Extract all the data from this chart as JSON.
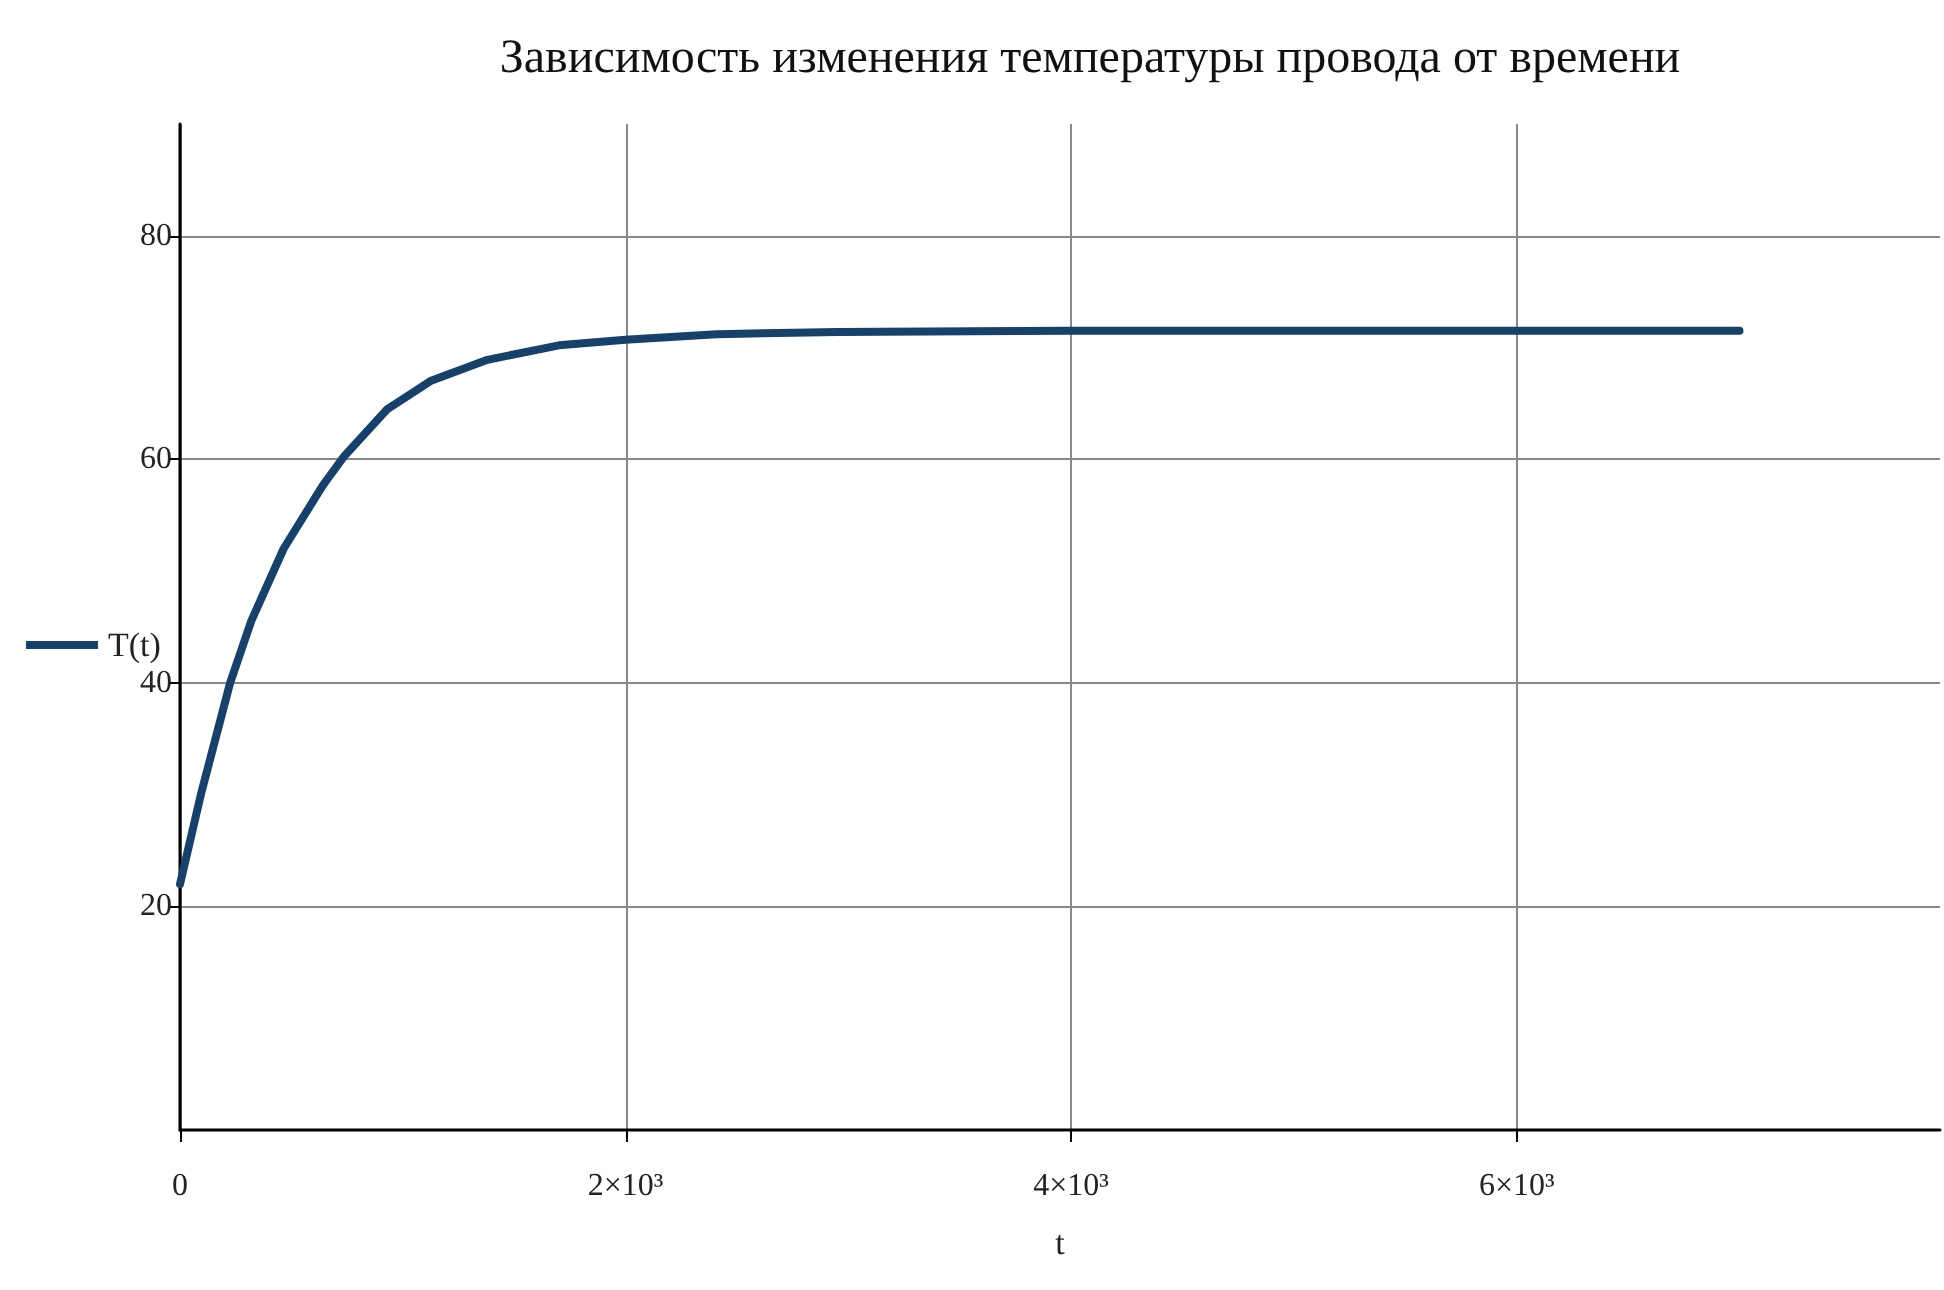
{
  "chart_data": {
    "type": "line",
    "title": "Зависимость изменения температуры провода от времени",
    "xlabel": "t",
    "x": [
      0,
      96,
      225,
      321,
      465,
      642,
      738,
      931,
      1124,
      1380,
      1701,
      2000,
      2408,
      2953,
      4000,
      5000,
      6000,
      7000
    ],
    "series": [
      {
        "name": "T(t)",
        "color": "#15416b",
        "values": [
          22,
          30.2,
          40,
          45.6,
          52,
          57.7,
          60.3,
          64.5,
          67,
          68.9,
          70.2,
          70.7,
          71.2,
          71.4,
          71.5,
          71.5,
          71.5,
          71.5
        ]
      }
    ],
    "xlim": [
      0,
      7900
    ],
    "ylim": [
      0,
      90
    ],
    "xticks": [
      0,
      {
        "value": 2000,
        "label": "2×10³"
      },
      {
        "value": 4000,
        "label": "4×10³"
      },
      {
        "value": 6000,
        "label": "6×10³"
      }
    ],
    "yticks": [
      20,
      40,
      60,
      80
    ],
    "grid": true,
    "legend": "left",
    "marker": "none",
    "line_style": "solid"
  }
}
